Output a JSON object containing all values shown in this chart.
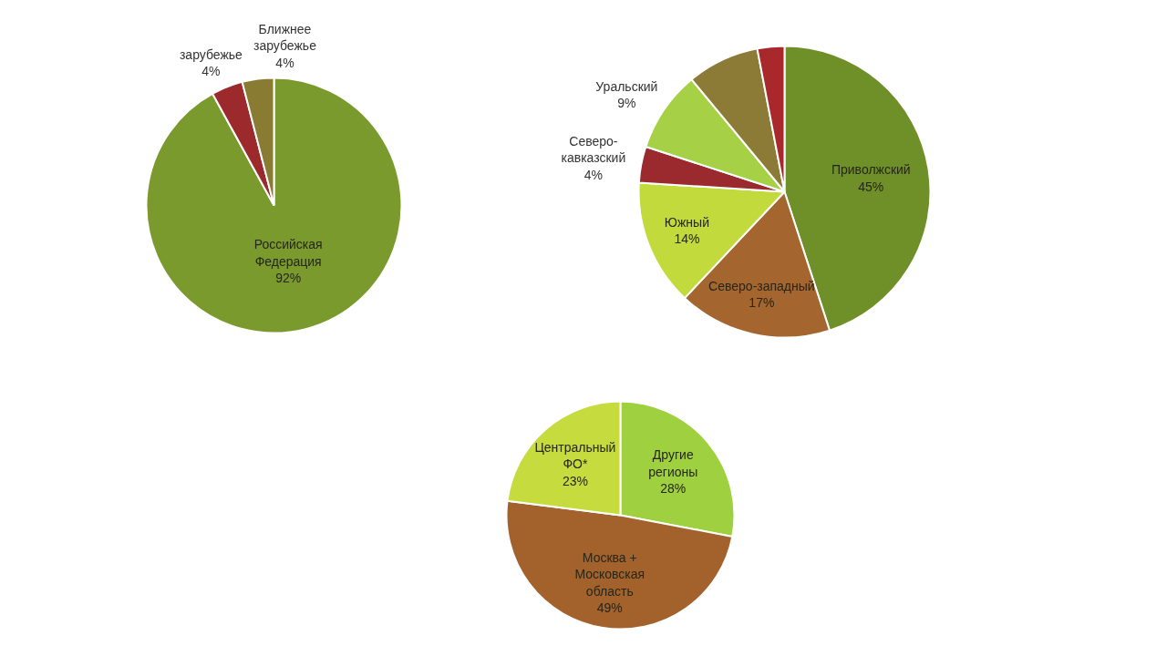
{
  "chart_data": [
    {
      "type": "pie",
      "categories": [
        "Российская\nФедерация",
        "зарубежье",
        "Ближнее\nзарубежье"
      ],
      "values": [
        92,
        4,
        4
      ],
      "colors": [
        "#7b9a2e",
        "#9c2a2c",
        "#8a7b33"
      ],
      "value_labels": [
        "92%",
        "4%",
        "4%"
      ]
    },
    {
      "type": "pie",
      "categories": [
        "Приволжский",
        "Северо-западный",
        "Южный",
        "Северо-\nкавказский",
        "Уральский",
        null,
        null
      ],
      "values": [
        45,
        17,
        14,
        4,
        9,
        8,
        3
      ],
      "colors": [
        "#6f8f28",
        "#a4652e",
        "#c3da3c",
        "#9b2a2e",
        "#a6d045",
        "#8c7b36",
        "#a8282c"
      ],
      "value_labels": [
        "45%",
        "17%",
        "14%",
        "4%",
        "9%",
        null,
        null
      ]
    },
    {
      "type": "pie",
      "categories": [
        "Другие\nрегионы",
        "Москва +\nМосковская\nобласть",
        "Центральный\nФО*"
      ],
      "values": [
        28,
        49,
        23
      ],
      "colors": [
        "#9fd040",
        "#a3622c",
        "#c6db3e"
      ],
      "value_labels": [
        "28%",
        "49%",
        "23%"
      ]
    }
  ]
}
